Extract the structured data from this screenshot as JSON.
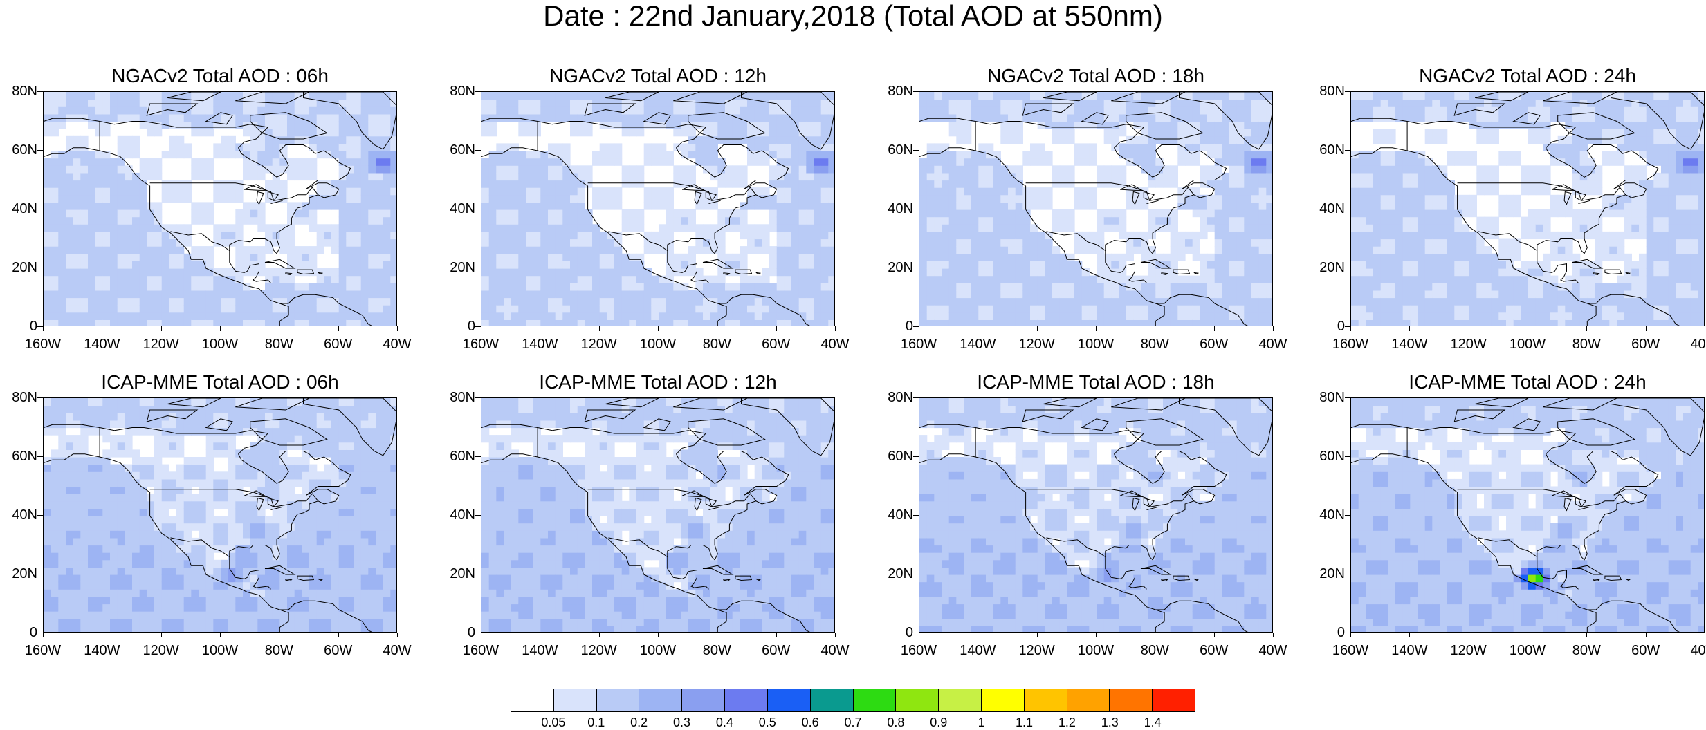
{
  "title": "Date : 22nd January,2018 (Total AOD at 550nm)",
  "panels": [
    {
      "title": "NGACv2 Total AOD : 06h",
      "model": "NGACv2",
      "hour": 6
    },
    {
      "title": "NGACv2 Total AOD : 12h",
      "model": "NGACv2",
      "hour": 12
    },
    {
      "title": "NGACv2 Total AOD : 18h",
      "model": "NGACv2",
      "hour": 18
    },
    {
      "title": "NGACv2 Total AOD : 24h",
      "model": "NGACv2",
      "hour": 24
    },
    {
      "title": "ICAP-MME Total AOD : 06h",
      "model": "ICAP-MME",
      "hour": 6
    },
    {
      "title": "ICAP-MME Total AOD : 12h",
      "model": "ICAP-MME",
      "hour": 12
    },
    {
      "title": "ICAP-MME Total AOD : 18h",
      "model": "ICAP-MME",
      "hour": 18
    },
    {
      "title": "ICAP-MME Total AOD : 24h",
      "model": "ICAP-MME",
      "hour": 24
    }
  ],
  "axes": {
    "lon_range": [
      -160,
      -40
    ],
    "lat_range": [
      0,
      80
    ],
    "x_ticks": [
      "160W",
      "140W",
      "120W",
      "100W",
      "80W",
      "60W",
      "40W"
    ],
    "x_values": [
      -160,
      -140,
      -120,
      -100,
      -80,
      -60,
      -40
    ],
    "y_ticks": [
      "80N",
      "60N",
      "40N",
      "20N",
      "0"
    ],
    "y_values": [
      80,
      60,
      40,
      20,
      0
    ]
  },
  "colorbar": {
    "labels": [
      "0.05",
      "0.1",
      "0.2",
      "0.3",
      "0.4",
      "0.5",
      "0.6",
      "0.7",
      "0.8",
      "0.9",
      "1",
      "1.1",
      "1.2",
      "1.3",
      "1.4"
    ],
    "colors": [
      "#ffffff",
      "#d9e3fb",
      "#b9cbf6",
      "#9db4f3",
      "#8a9ff0",
      "#6c7bf0",
      "#1a5ff5",
      "#0a9a8f",
      "#2ddb12",
      "#8fe610",
      "#c7f045",
      "#ffff00",
      "#ffc400",
      "#ffa200",
      "#ff7400",
      "#ff2000"
    ]
  },
  "aod_features": [
    {
      "panels": [
        0,
        1,
        2,
        3
      ],
      "lon": -45,
      "lat": 56,
      "level": 0.5
    },
    {
      "panels": [
        4,
        5,
        6,
        7
      ],
      "lon": -87,
      "lat": 35,
      "level": 0.3
    },
    {
      "panels": [
        4,
        6,
        7
      ],
      "lon": -97,
      "lat": 20,
      "level": 0.4
    },
    {
      "panels": [
        7
      ],
      "lon": -98,
      "lat": 19,
      "level": 0.9
    }
  ]
}
